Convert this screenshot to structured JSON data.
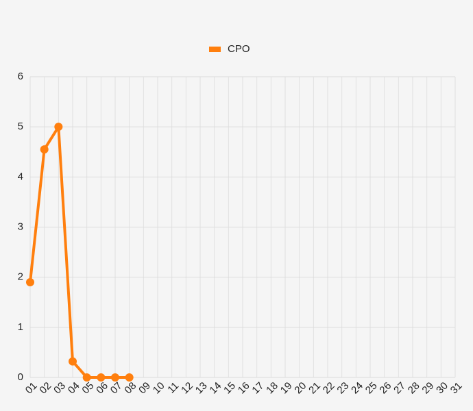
{
  "chart_data": {
    "type": "line",
    "categories": [
      "01",
      "02",
      "03",
      "04",
      "05",
      "06",
      "07",
      "08",
      "09",
      "10",
      "11",
      "12",
      "13",
      "14",
      "15",
      "16",
      "17",
      "18",
      "19",
      "20",
      "21",
      "22",
      "23",
      "24",
      "25",
      "26",
      "27",
      "28",
      "29",
      "30",
      "31"
    ],
    "series": [
      {
        "name": "CPO",
        "color": "#ff7f0e",
        "values": [
          1.9,
          4.55,
          5,
          0.32,
          0,
          0,
          0,
          0,
          null,
          null,
          null,
          null,
          null,
          null,
          null,
          null,
          null,
          null,
          null,
          null,
          null,
          null,
          null,
          null,
          null,
          null,
          null,
          null,
          null,
          null,
          null
        ]
      }
    ],
    "ylim": [
      0,
      6
    ],
    "yticks": [
      0,
      1,
      2,
      3,
      4,
      5,
      6
    ],
    "grid": true,
    "legend": "top"
  }
}
